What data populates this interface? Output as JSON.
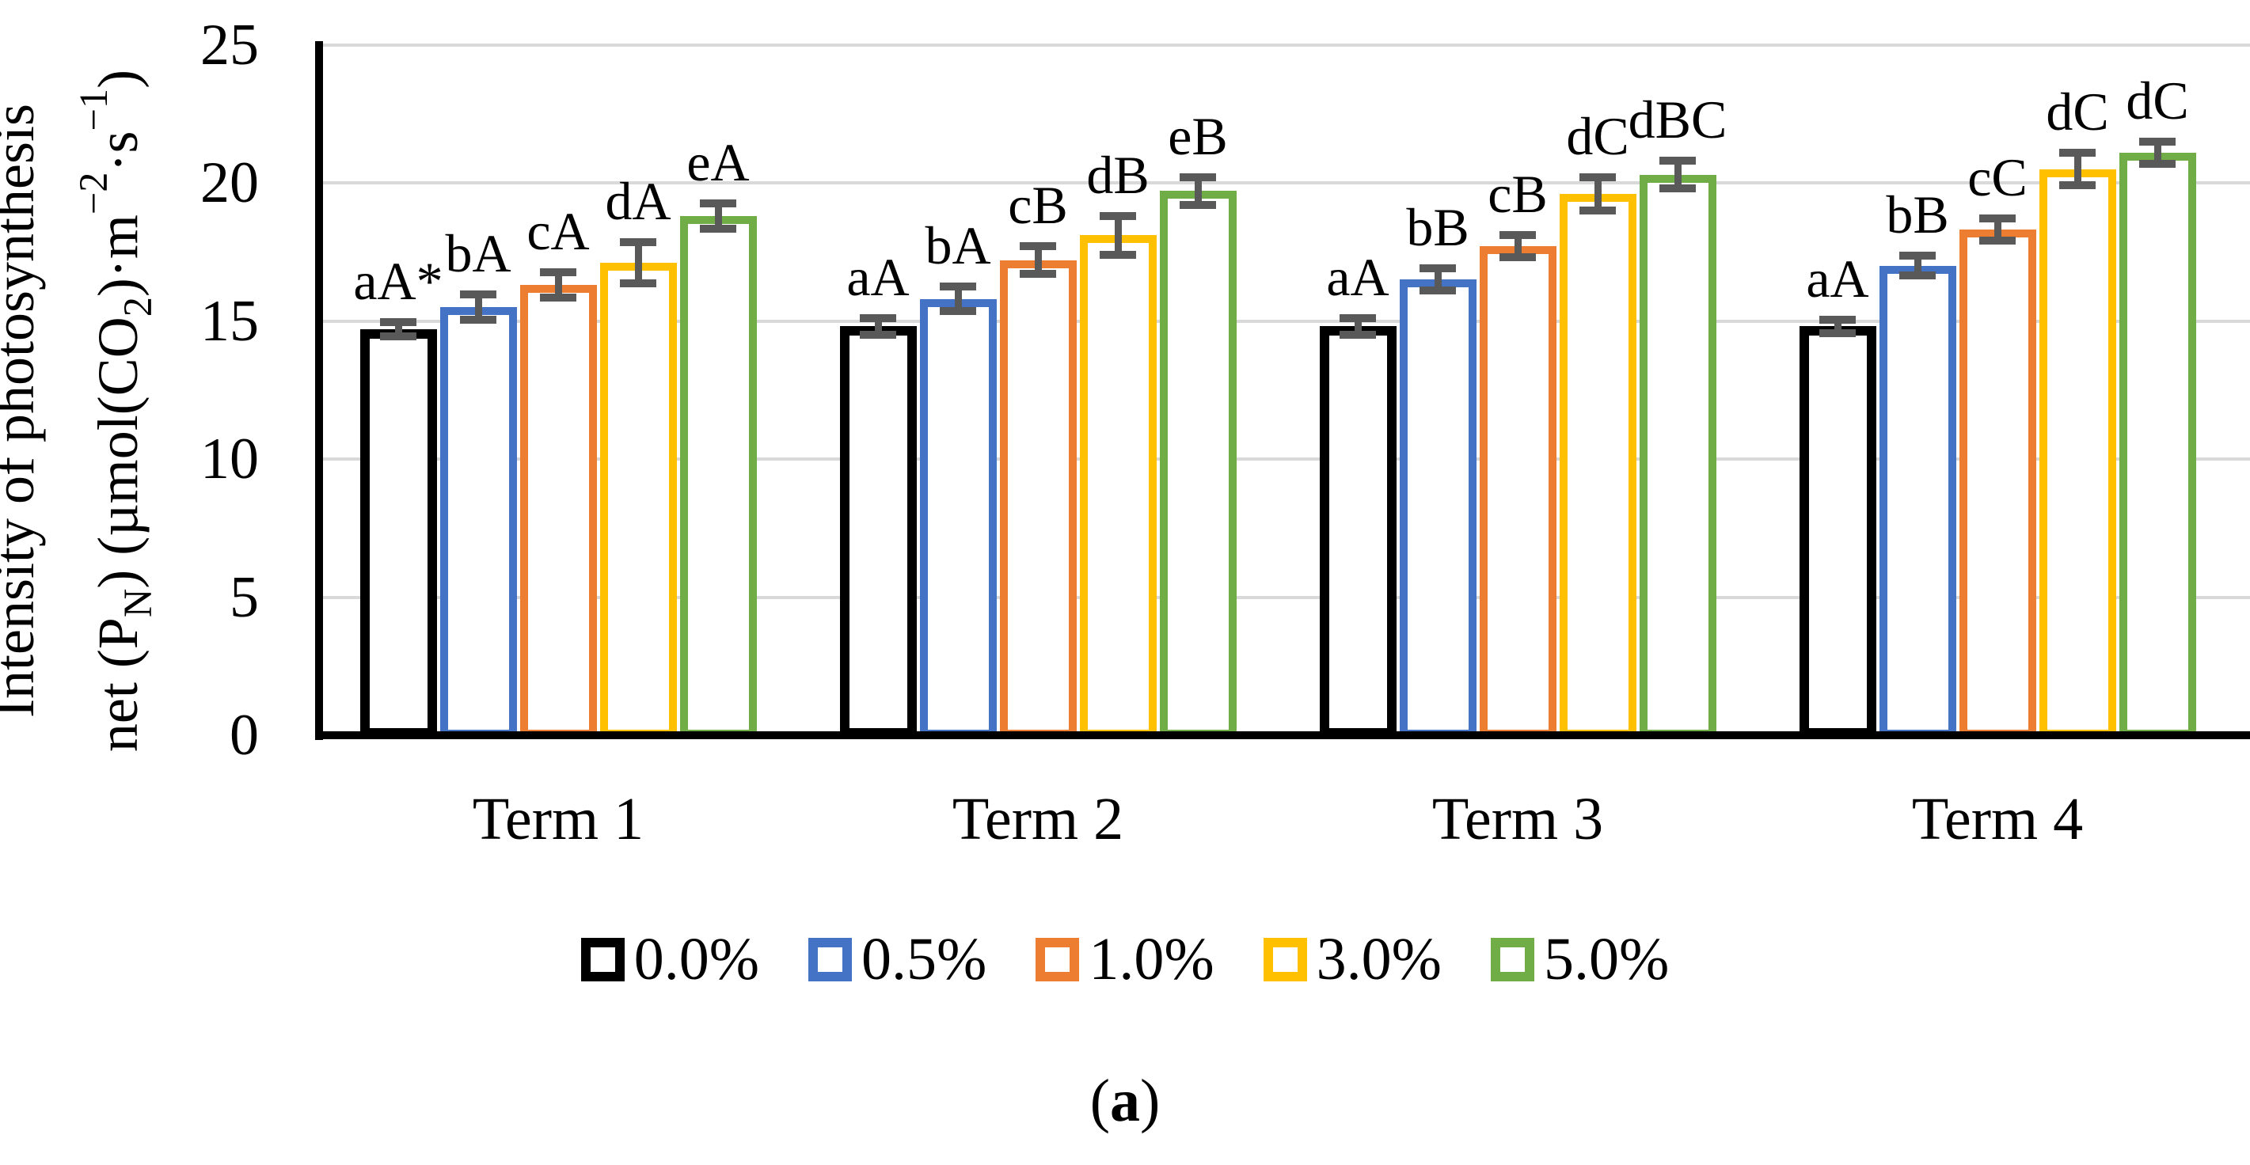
{
  "figure": {
    "caption_open": "(",
    "caption_letter": "a",
    "caption_close": ")"
  },
  "chart_data": {
    "type": "bar",
    "title": "",
    "ylabel_line1": "Intensity of photosynthesis",
    "ylabel_line2_rich": [
      {
        "t": "net (P"
      },
      {
        "t": "N",
        "s": "sub"
      },
      {
        "t": ") (µmol(CO"
      },
      {
        "t": "2",
        "s": "sub"
      },
      {
        "t": ")·m"
      },
      {
        "t": "−2",
        "s": "sup"
      },
      {
        "t": "·s"
      },
      {
        "t": "−1",
        "s": "sup"
      },
      {
        "t": ")"
      }
    ],
    "xlabel": "",
    "categories": [
      "Term 1",
      "Term 2",
      "Term 3",
      "Term 4"
    ],
    "series": [
      {
        "name": "0.0%",
        "color": "#000000",
        "values": [
          14.7,
          14.8,
          14.8,
          14.8
        ],
        "errors": [
          0.25,
          0.3,
          0.3,
          0.25
        ],
        "labels": [
          "aA*",
          "aA",
          "aA",
          "aA"
        ]
      },
      {
        "name": "0.5%",
        "color": "#4472C4",
        "values": [
          15.5,
          15.8,
          16.5,
          17.0
        ],
        "errors": [
          0.45,
          0.45,
          0.4,
          0.35
        ],
        "labels": [
          "bA",
          "bA",
          "bB",
          "bB"
        ]
      },
      {
        "name": "1.0%",
        "color": "#ED7D31",
        "values": [
          16.3,
          17.2,
          17.7,
          18.3
        ],
        "errors": [
          0.45,
          0.5,
          0.4,
          0.4
        ],
        "labels": [
          "cA",
          "cB",
          "cB",
          "cC"
        ]
      },
      {
        "name": "3.0%",
        "color": "#FFC000",
        "values": [
          17.1,
          18.1,
          19.6,
          20.5
        ],
        "errors": [
          0.75,
          0.7,
          0.6,
          0.6
        ],
        "labels": [
          "dA",
          "dB",
          "dC",
          "dC"
        ]
      },
      {
        "name": "5.0%",
        "color": "#70AD47",
        "values": [
          18.8,
          19.7,
          20.3,
          21.1
        ],
        "errors": [
          0.45,
          0.5,
          0.5,
          0.4
        ],
        "labels": [
          "eA",
          "eB",
          "dBC",
          "dC"
        ]
      }
    ],
    "y_ticks": [
      0,
      5,
      10,
      15,
      20,
      25
    ],
    "ylim": [
      0,
      25
    ],
    "grid": "horizontal",
    "gridline_color": "#D9D9D9",
    "error_bar_color": "#595959",
    "legend_position": "bottom"
  }
}
